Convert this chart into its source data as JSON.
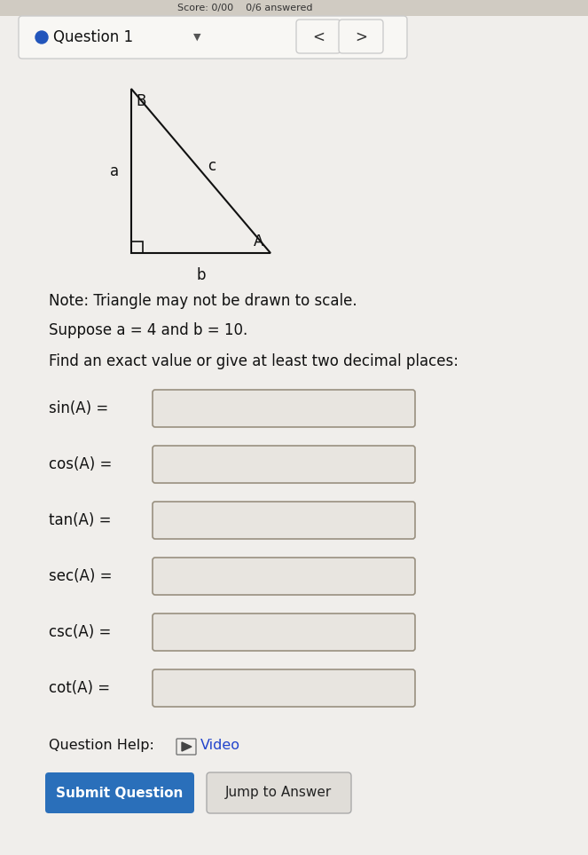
{
  "outer_bg": "#c8c3bb",
  "inner_bg": "#f0eeeb",
  "header_text": "Score: 0/00    0/6 answered",
  "question_label": "Question 1",
  "dot_color": "#2255bb",
  "note_text": "Note: Triangle may not be drawn to scale.",
  "suppose_text": "Suppose a = 4 and b = 10.",
  "find_text": "Find an exact value or give at least two decimal places:",
  "trig_labels": [
    "sin(A) =",
    "cos(A) =",
    "tan(A) =",
    "sec(A) =",
    "csc(A) =",
    "cot(A) ="
  ],
  "input_box_color": "#e8e5e0",
  "input_box_edge": "#999080",
  "question_help_text": "Question Help:",
  "video_text": "Video",
  "submit_btn_text": "Submit Question",
  "submit_btn_color": "#2a6fba",
  "jump_btn_text": "Jump to Answer",
  "jump_btn_color": "#e0ddd8",
  "jump_btn_text_color": "#222222",
  "triangle_line_color": "#111111",
  "label_color": "#111111",
  "text_color": "#111111"
}
